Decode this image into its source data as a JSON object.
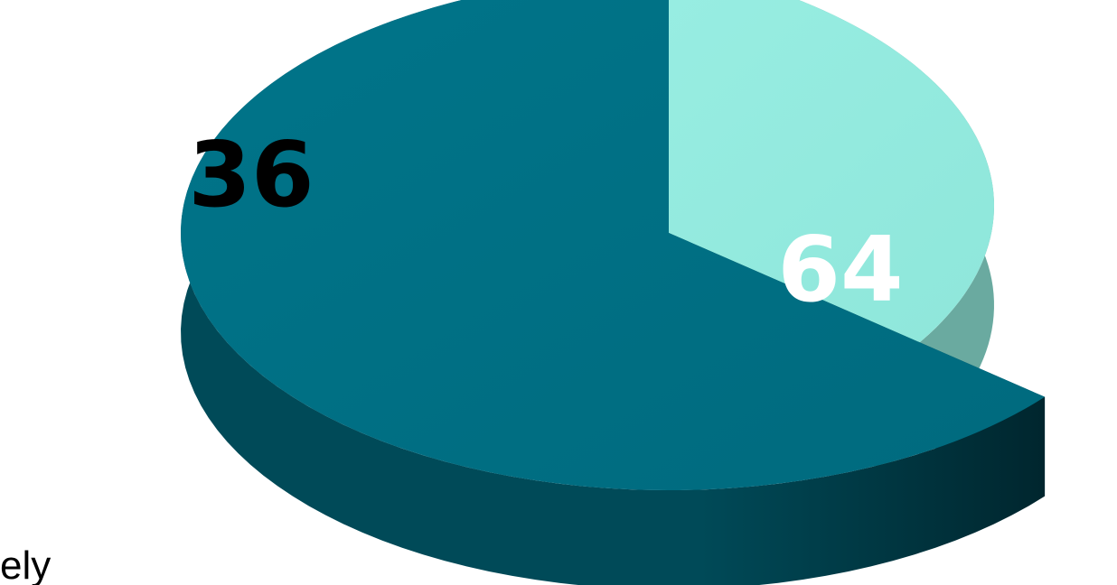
{
  "chart_data": {
    "type": "pie",
    "title": "",
    "style": "3d-exploded",
    "slices": [
      {
        "label": "",
        "value": 36,
        "value_text": "36",
        "color": "#94ECE0",
        "label_color": "#000000"
      },
      {
        "label": "",
        "value": 64,
        "value_text": "64",
        "color": "#007085",
        "label_color": "#FFFFFF"
      }
    ],
    "legend": "none"
  },
  "page": {
    "cut_text": "ely"
  }
}
